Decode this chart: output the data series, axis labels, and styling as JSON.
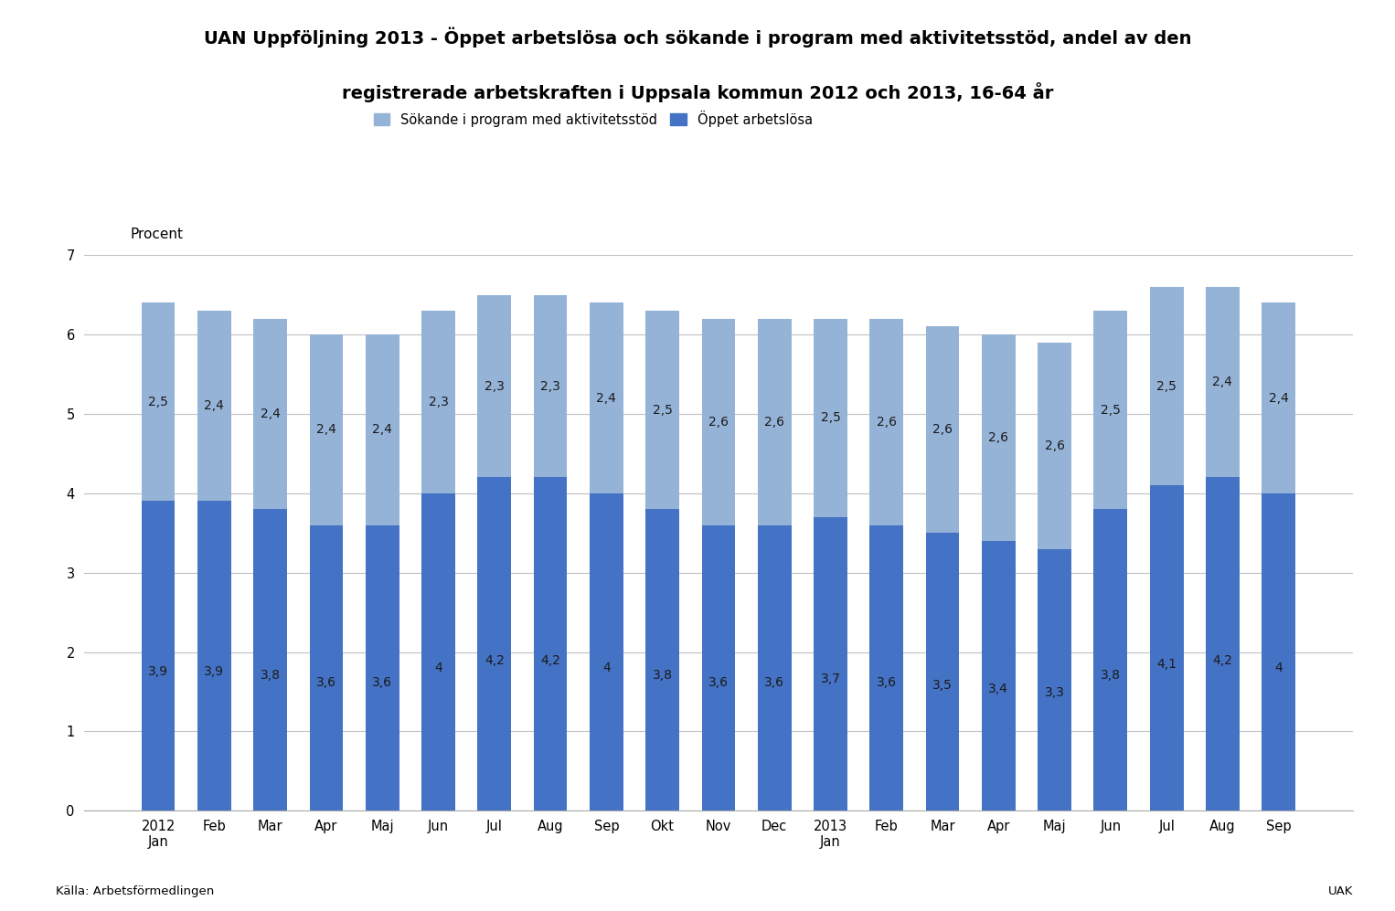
{
  "title_line1": "UAN Uppföljning 2013 - Öppet arbetslösa och sökande i program med aktivitetsstöd, andel av den",
  "title_line2": "registrerade arbetskraften i Uppsala kommun 2012 och 2013, 16-64 år",
  "ylabel": "Procent",
  "xlabel_bottom_left": "Källa: Arbetsförmedlingen",
  "xlabel_bottom_right": "UAK",
  "legend_label1": "Sökande i program med aktivitetsstöd",
  "legend_label2": "Öppet arbetslösa",
  "categories": [
    "2012\nJan",
    "Feb",
    "Mar",
    "Apr",
    "Maj",
    "Jun",
    "Jul",
    "Aug",
    "Sep",
    "Okt",
    "Nov",
    "Dec",
    "2013\nJan",
    "Feb",
    "Mar",
    "Apr",
    "Maj",
    "Jun",
    "Jul",
    "Aug",
    "Sep"
  ],
  "open_unemployed": [
    3.9,
    3.9,
    3.8,
    3.6,
    3.6,
    4.0,
    4.2,
    4.2,
    4.0,
    3.8,
    3.6,
    3.6,
    3.7,
    3.6,
    3.5,
    3.4,
    3.3,
    3.8,
    4.1,
    4.2,
    4.0
  ],
  "program_seekers": [
    2.5,
    2.4,
    2.4,
    2.4,
    2.4,
    2.3,
    2.3,
    2.3,
    2.4,
    2.5,
    2.6,
    2.6,
    2.5,
    2.6,
    2.6,
    2.6,
    2.6,
    2.5,
    2.5,
    2.4,
    2.4
  ],
  "color_open": "#4472C4",
  "color_program": "#95B3D7",
  "ylim": [
    0,
    7
  ],
  "yticks": [
    0,
    1,
    2,
    3,
    4,
    5,
    6,
    7
  ],
  "background_color": "#ffffff",
  "grid_color": "#c0c0c0",
  "title_fontsize": 14,
  "axis_label_fontsize": 11,
  "tick_fontsize": 10.5,
  "bar_width": 0.6,
  "label_fontsize": 10
}
